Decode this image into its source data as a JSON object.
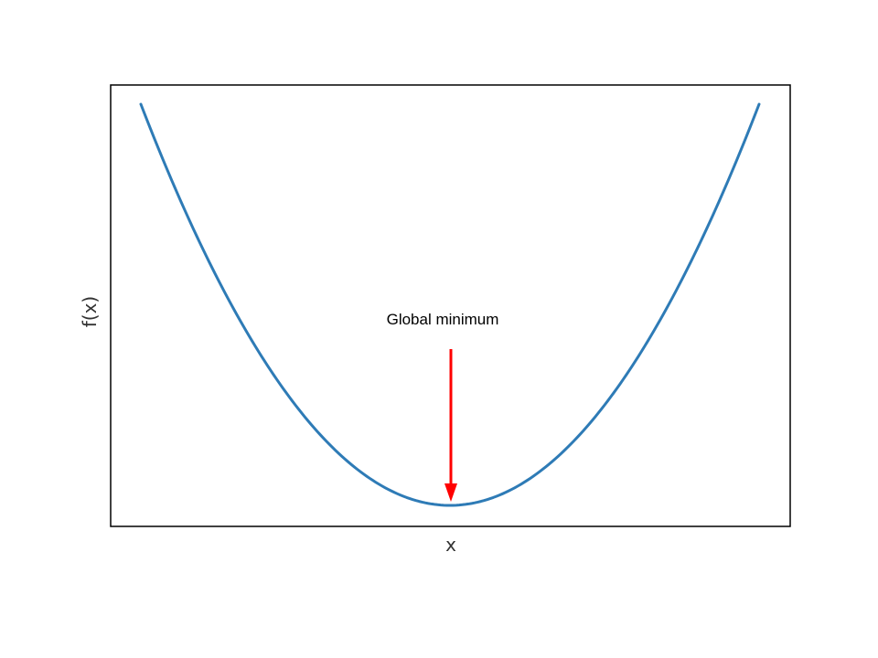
{
  "chart_data": {
    "type": "line",
    "title": "",
    "xlabel": "x",
    "ylabel": "f(x)",
    "xticks": [],
    "yticks": [],
    "grid": false,
    "legend": "none",
    "series": [
      {
        "function": "x^2",
        "x": [
          -2.0,
          -1.8,
          -1.6,
          -1.4,
          -1.2,
          -1.0,
          -0.8,
          -0.6,
          -0.4,
          -0.2,
          0.0,
          0.2,
          0.4,
          0.6,
          0.8,
          1.0,
          1.2,
          1.4,
          1.6,
          1.8,
          2.0
        ],
        "y": [
          4.0,
          3.24,
          2.56,
          1.96,
          1.44,
          1.0,
          0.64,
          0.36,
          0.16,
          0.04,
          0.0,
          0.04,
          0.16,
          0.36,
          0.64,
          1.0,
          1.44,
          1.96,
          2.56,
          3.24,
          4.0
        ],
        "color": "#2e7bb6"
      }
    ],
    "annotations": [
      {
        "text": "Global minimum",
        "point": [
          0,
          0
        ],
        "arrow_color": "#ff0000"
      }
    ]
  }
}
